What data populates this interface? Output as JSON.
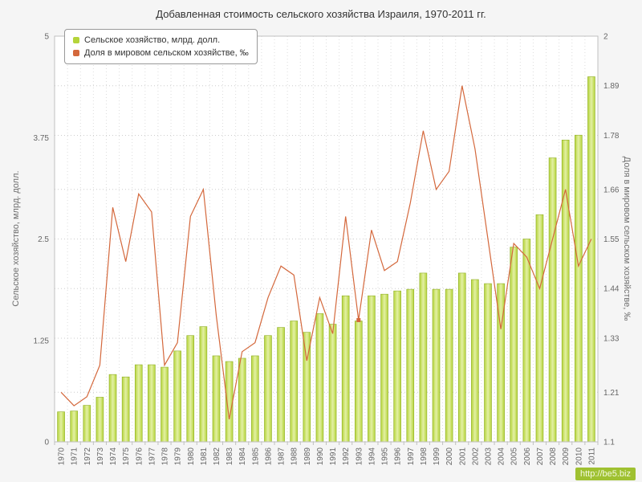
{
  "watermark": {
    "text": "http://be5.biz"
  },
  "chart_data": {
    "type": "bar",
    "subtype": "bar+line combo, dual y-axis",
    "title": "Добавленная стоимость сельского хозяйства Израиля, 1970-2011 гг.",
    "categories": [
      "1970",
      "1971",
      "1972",
      "1973",
      "1974",
      "1975",
      "1976",
      "1977",
      "1978",
      "1979",
      "1980",
      "1981",
      "1982",
      "1983",
      "1984",
      "1985",
      "1986",
      "1987",
      "1988",
      "1989",
      "1990",
      "1991",
      "1992",
      "1993",
      "1994",
      "1995",
      "1996",
      "1997",
      "1998",
      "1999",
      "2000",
      "2001",
      "2002",
      "2003",
      "2004",
      "2005",
      "2006",
      "2007",
      "2008",
      "2009",
      "2010",
      "2011"
    ],
    "series": [
      {
        "name": "Сельское хозяйство, млрд. долл.",
        "type": "bar",
        "axis": "left",
        "color": "#b5d43a",
        "values": [
          0.37,
          0.38,
          0.45,
          0.55,
          0.83,
          0.8,
          0.95,
          0.95,
          0.92,
          1.12,
          1.31,
          1.42,
          1.06,
          0.99,
          1.03,
          1.06,
          1.31,
          1.41,
          1.49,
          1.35,
          1.58,
          1.45,
          1.8,
          1.49,
          1.8,
          1.82,
          1.86,
          1.88,
          2.08,
          1.88,
          1.88,
          2.08,
          2.0,
          1.95,
          1.95,
          2.4,
          2.5,
          2.8,
          3.5,
          3.72,
          3.78,
          4.5
        ]
      },
      {
        "name": "Доля в мировом сельском хозяйстве, ‰",
        "type": "line",
        "axis": "right",
        "color": "#d4683c",
        "markers": [
          "1993"
        ],
        "values": [
          1.21,
          1.18,
          1.2,
          1.27,
          1.62,
          1.5,
          1.65,
          1.61,
          1.27,
          1.32,
          1.6,
          1.66,
          1.38,
          1.15,
          1.3,
          1.32,
          1.42,
          1.49,
          1.47,
          1.28,
          1.42,
          1.34,
          1.6,
          1.37,
          1.57,
          1.48,
          1.5,
          1.63,
          1.79,
          1.66,
          1.7,
          1.89,
          1.75,
          1.55,
          1.35,
          1.54,
          1.51,
          1.44,
          1.55,
          1.66,
          1.49,
          1.55
        ]
      }
    ],
    "left_axis": {
      "label": "Сельское хозяйство, млрд. долл.",
      "min": 0,
      "max": 5,
      "ticks": [
        0,
        1.25,
        2.5,
        3.75,
        5
      ]
    },
    "right_axis": {
      "label": "Доля в мировом сельском хозяйстве, ‰",
      "min": 1.1,
      "max": 2,
      "ticks": [
        1.1,
        1.21,
        1.33,
        1.44,
        1.55,
        1.66,
        1.78,
        1.89,
        2
      ]
    },
    "grid": true,
    "legend_position": "top-left",
    "colors": {
      "bar_fill": "#b5d43a",
      "bar_fill_light": "#e3f0a4",
      "bar_border": "#8fae25",
      "line": "#d4683c",
      "grid_h": "#cccccc",
      "grid_v": "#dddddd",
      "plot_bg": "#ffffff",
      "plot_border": "#c0c0c0",
      "tick_text": "#666666"
    }
  }
}
